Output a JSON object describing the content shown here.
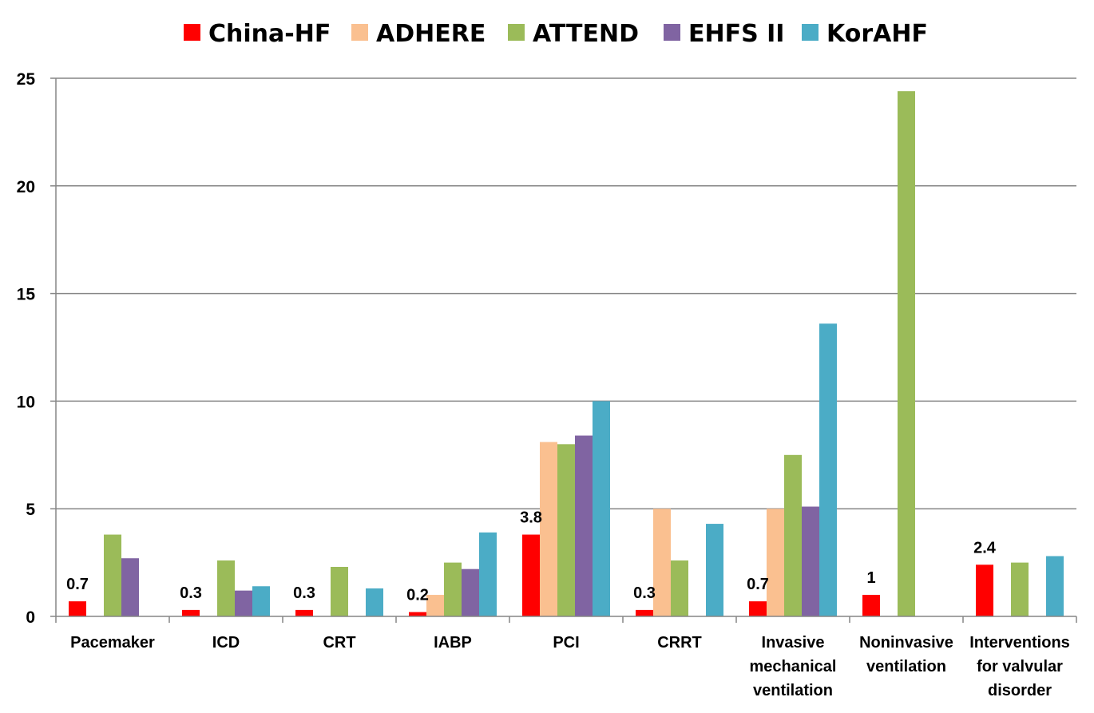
{
  "chart_data": {
    "type": "bar",
    "title": "",
    "xlabel": "",
    "ylabel": "",
    "ylim": [
      0,
      25
    ],
    "yticks": [
      0,
      5,
      10,
      15,
      20,
      25
    ],
    "grid": true,
    "legend_position": "top",
    "categories": [
      [
        "Pacemaker"
      ],
      [
        "ICD"
      ],
      [
        "CRT"
      ],
      [
        "IABP"
      ],
      [
        "PCI"
      ],
      [
        "CRRT"
      ],
      [
        "Invasive",
        "mechanical",
        "ventilation"
      ],
      [
        "Noninvasive",
        "ventilation"
      ],
      [
        "Interventions",
        "for valvular",
        "disorder"
      ]
    ],
    "series": [
      {
        "name": "China-HF",
        "color": "#ff0000",
        "values": [
          0.7,
          0.3,
          0.3,
          0.2,
          3.8,
          0.3,
          0.7,
          1,
          2.4
        ],
        "labels": [
          "0.7",
          "0.3",
          "0.3",
          "0.2",
          "3.8",
          "0.3",
          "0.7",
          "1",
          "2.4"
        ]
      },
      {
        "name": "ADHERE",
        "color": "#fac090",
        "values": [
          null,
          null,
          null,
          1.0,
          8.1,
          5.0,
          5.0,
          null,
          null
        ]
      },
      {
        "name": "ATTEND",
        "color": "#9bbb59",
        "values": [
          3.8,
          2.6,
          2.3,
          2.5,
          8.0,
          2.6,
          7.5,
          24.4,
          2.5
        ]
      },
      {
        "name": "EHFS II",
        "color": "#8064a2",
        "values": [
          2.7,
          1.2,
          null,
          2.2,
          8.4,
          null,
          5.1,
          null,
          null
        ]
      },
      {
        "name": "KorAHF",
        "color": "#4bacc6",
        "values": [
          null,
          1.4,
          1.3,
          3.9,
          10.0,
          4.3,
          13.6,
          null,
          2.8
        ]
      }
    ]
  }
}
